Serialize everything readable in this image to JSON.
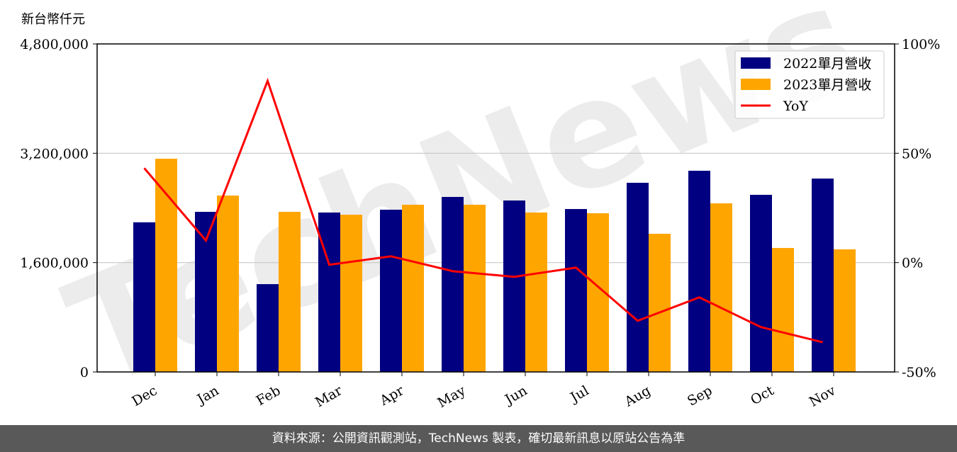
{
  "watermark": "TechNews",
  "footer": "資料來源：公開資訊觀測站，TechNews 製表，確切最新訊息以原站公告為準",
  "chart_data": {
    "type": "bar",
    "ylabel": "新台幣仟元",
    "categories": [
      "Dec",
      "Jan",
      "Feb",
      "Mar",
      "Apr",
      "May",
      "Jun",
      "Jul",
      "Aug",
      "Sep",
      "Oct",
      "Nov"
    ],
    "series": [
      {
        "name": "2022單月營收",
        "color": "#000080",
        "values": [
          2190000,
          2343000,
          1285000,
          2333000,
          2374000,
          2561000,
          2509000,
          2384000,
          2768000,
          2944000,
          2592000,
          2830000
        ]
      },
      {
        "name": "2023單月營收",
        "color": "#ffa500",
        "values": [
          3120000,
          2581000,
          2343000,
          2301000,
          2447000,
          2447000,
          2333000,
          2322000,
          2022000,
          2467000,
          1814000,
          1794000
        ]
      },
      {
        "name": "YoY",
        "color": "#ff0000",
        "type": "line",
        "axis": "y2",
        "values": [
          43.2,
          10.1,
          83.1,
          -1.0,
          2.9,
          -3.9,
          -6.5,
          -2.3,
          -26.6,
          -15.9,
          -29.5,
          -36.4
        ]
      }
    ],
    "ylim": [
      0,
      4800000
    ],
    "yticks": [
      0,
      {
        "value": 1600000,
        "label": "1,600,000"
      },
      {
        "value": 3200000,
        "label": "3,200,000"
      },
      {
        "value": 4800000,
        "label": "4,800,000"
      }
    ],
    "y2lim": [
      -50,
      100
    ],
    "y2ticks": [
      {
        "value": -50,
        "label": "-50%"
      },
      {
        "value": 0,
        "label": "0%"
      },
      {
        "value": 50,
        "label": "50%"
      },
      {
        "value": 100,
        "label": "100%"
      }
    ],
    "grid": true,
    "legend": "upper right"
  }
}
